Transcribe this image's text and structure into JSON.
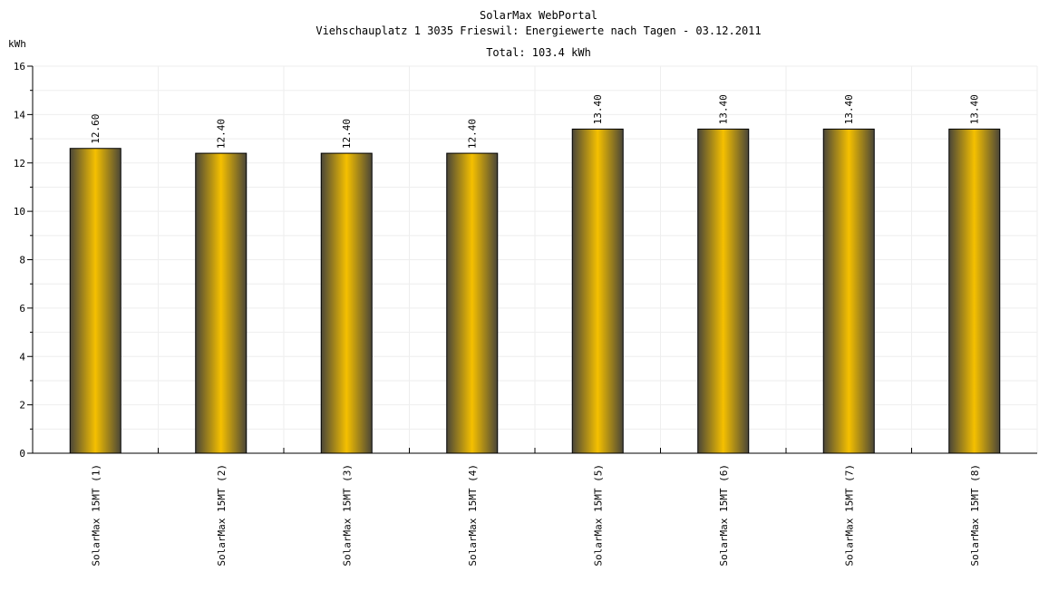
{
  "chart_data": {
    "type": "bar",
    "title": "SolarMax WebPortal",
    "subtitle": "Viehschauplatz 1 3035 Frieswil: Energiewerte nach Tagen - 03.12.2011",
    "total_label": "Total: 103.4 kWh",
    "ylabel": "kWh",
    "xlabel": "",
    "ylim": [
      0,
      16
    ],
    "yticks": [
      0,
      2,
      4,
      6,
      8,
      10,
      12,
      14,
      16
    ],
    "categories": [
      "SolarMax 15MT (1)",
      "SolarMax 15MT (2)",
      "SolarMax 15MT (3)",
      "SolarMax 15MT (4)",
      "SolarMax 15MT (5)",
      "SolarMax 15MT (6)",
      "SolarMax 15MT (7)",
      "SolarMax 15MT (8)"
    ],
    "values": [
      12.6,
      12.4,
      12.4,
      12.4,
      13.4,
      13.4,
      13.4,
      13.4
    ],
    "value_labels": [
      "12.60",
      "12.40",
      "12.40",
      "12.40",
      "13.40",
      "13.40",
      "13.40",
      "13.40"
    ],
    "grid": true,
    "legend": "none",
    "colors": {
      "bar_center": "#f5c000",
      "bar_edge": "#4a4638",
      "bar_stroke": "#000000",
      "grid": "#eeeeee",
      "axis": "#000000"
    }
  }
}
